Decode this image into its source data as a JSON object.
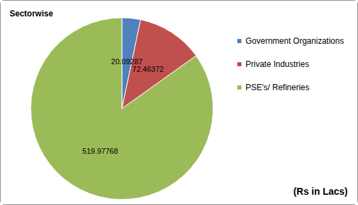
{
  "chart_data": {
    "type": "pie",
    "title": "Sectorwise",
    "categories": [
      "Government Organizations",
      "Private Industries",
      "PSE's/ Refineries"
    ],
    "values": [
      20.09287,
      72.46372,
      519.97768
    ],
    "colors": [
      "#4f81bd",
      "#c0504d",
      "#9bbb59"
    ],
    "data_labels": true,
    "legend": "right",
    "annotation": "(Rs in Lacs)"
  }
}
